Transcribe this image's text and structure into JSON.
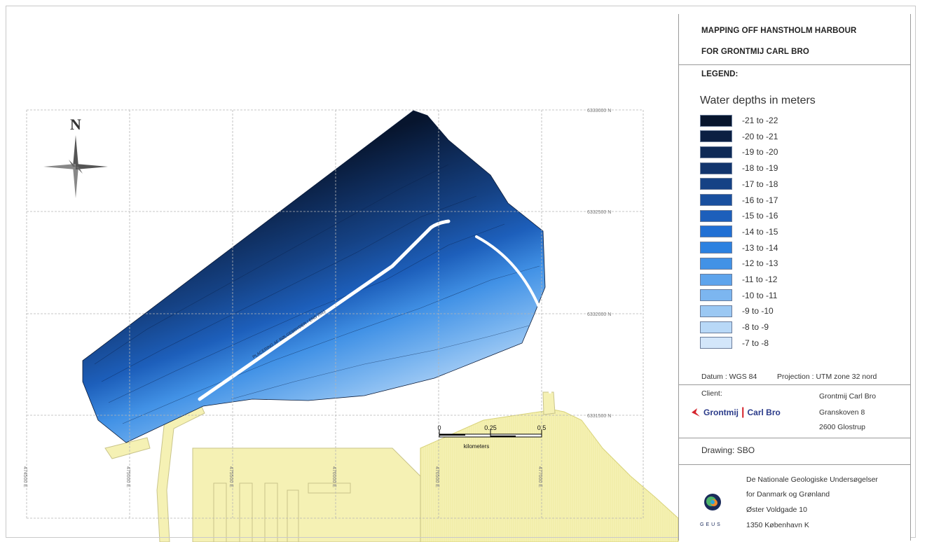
{
  "title": {
    "line1": "MAPPING OFF HANSTHOLM HARBOUR",
    "line2": "FOR GRONTMIJ CARL BRO"
  },
  "legend": {
    "header": "LEGEND:",
    "title": "Water depths in meters",
    "classes": [
      {
        "label": "-21 to -22",
        "color": "#07152e"
      },
      {
        "label": "-20 to -21",
        "color": "#0b1f42"
      },
      {
        "label": "-19 to -20",
        "color": "#0e2a57"
      },
      {
        "label": "-18 to -19",
        "color": "#12356d"
      },
      {
        "label": "-17 to -18",
        "color": "#154285"
      },
      {
        "label": "-16 to -17",
        "color": "#19509f"
      },
      {
        "label": "-15 to -16",
        "color": "#1d5fbb"
      },
      {
        "label": "-14 to -15",
        "color": "#2170d4"
      },
      {
        "label": "-13 to -14",
        "color": "#2c81e0"
      },
      {
        "label": "-12 to -13",
        "color": "#4292e6"
      },
      {
        "label": "-11 to -12",
        "color": "#5ea4ec"
      },
      {
        "label": "-10 to -11",
        "color": "#7cb6f0"
      },
      {
        "label": "-9 to -10",
        "color": "#9bc8f3"
      },
      {
        "label": "-8 to -9",
        "color": "#b8d8f7"
      },
      {
        "label": "-7 to -8",
        "color": "#d3e6fa"
      }
    ]
  },
  "datum": "Datum : WGS 84",
  "projection": "Projection : UTM zone 32 nord",
  "client": {
    "label": "Client:",
    "logo_name": "Grontmij",
    "logo_name2": "Carl Bro",
    "name": "Grontmij Carl Bro",
    "street": "Granskoven 8",
    "city": "2600 Glostrup"
  },
  "drawing": "Drawing: SBO",
  "geus": {
    "line1": "De Nationale Geologiske Undersøgelser",
    "line2": "for Danmark og Grønland",
    "line3": "Øster Voldgade 10",
    "line4": "1350 København K",
    "logo_text": "GEUS"
  },
  "map": {
    "north_label": "N",
    "northings": [
      "6333000 N",
      "6332500 N",
      "6332000 N",
      "6331500 N"
    ],
    "eastings": [
      "474500 E",
      "475000 E",
      "475500 E",
      "476000 E",
      "476500 E",
      "477000 E"
    ],
    "scale_ticks": [
      "0",
      "0.25",
      "0.5"
    ],
    "scale_unit": "kilometers",
    "annotation": "PLACERING AF BØLGEBRYDER / ENS 2011",
    "land_color": "#f5f1b4",
    "grid_color": "#b5b5b5"
  }
}
